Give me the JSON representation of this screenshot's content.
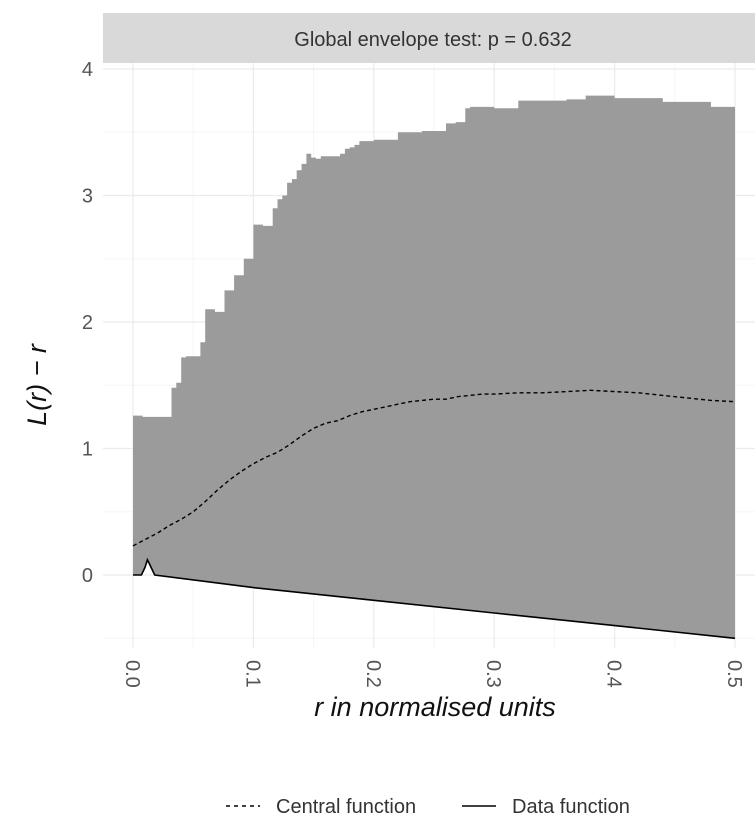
{
  "chart_data": {
    "type": "area",
    "facet_title": "Global envelope test: p = 0.632",
    "xlabel": "r in normalised units",
    "ylabel": "L(r) − r",
    "xlim": [
      0.0,
      0.5
    ],
    "ylim": [
      -0.55,
      4.05
    ],
    "x_ticks": [
      0.0,
      0.1,
      0.2,
      0.3,
      0.4,
      0.5
    ],
    "x_tick_labels": [
      "0.0",
      "0.1",
      "0.2",
      "0.3",
      "0.4",
      "0.5"
    ],
    "y_ticks": [
      0,
      1,
      2,
      3,
      4
    ],
    "y_tick_labels": [
      "0",
      "1",
      "2",
      "3",
      "4"
    ],
    "grid": true,
    "legend_position": "bottom",
    "envelope": {
      "x": [
        0.0,
        0.004,
        0.008,
        0.012,
        0.016,
        0.02,
        0.024,
        0.028,
        0.032,
        0.036,
        0.04,
        0.044,
        0.048,
        0.052,
        0.056,
        0.06,
        0.064,
        0.068,
        0.072,
        0.076,
        0.08,
        0.084,
        0.088,
        0.092,
        0.096,
        0.1,
        0.104,
        0.108,
        0.112,
        0.116,
        0.12,
        0.124,
        0.128,
        0.132,
        0.136,
        0.14,
        0.144,
        0.148,
        0.152,
        0.156,
        0.16,
        0.164,
        0.168,
        0.172,
        0.176,
        0.18,
        0.184,
        0.188,
        0.2,
        0.22,
        0.228,
        0.24,
        0.26,
        0.268,
        0.276,
        0.28,
        0.3,
        0.32,
        0.36,
        0.376,
        0.4,
        0.44,
        0.48,
        0.5
      ],
      "upper": [
        1.26,
        1.26,
        1.25,
        1.25,
        1.25,
        1.25,
        1.25,
        1.25,
        1.48,
        1.52,
        1.72,
        1.73,
        1.73,
        1.73,
        1.84,
        2.1,
        2.1,
        2.08,
        2.08,
        2.25,
        2.25,
        2.37,
        2.37,
        2.5,
        2.5,
        2.77,
        2.77,
        2.76,
        2.76,
        2.9,
        2.97,
        3.0,
        3.1,
        3.13,
        3.2,
        3.25,
        3.33,
        3.3,
        3.29,
        3.31,
        3.31,
        3.31,
        3.31,
        3.33,
        3.37,
        3.38,
        3.4,
        3.43,
        3.44,
        3.5,
        3.5,
        3.51,
        3.57,
        3.58,
        3.69,
        3.7,
        3.69,
        3.75,
        3.76,
        3.79,
        3.77,
        3.74,
        3.7,
        3.67
      ],
      "lower_line": "data_function",
      "color": "#9b9b9b"
    },
    "series": [
      {
        "name": "Central function",
        "style": "dashed",
        "x": [
          0.0,
          0.01,
          0.02,
          0.03,
          0.04,
          0.05,
          0.06,
          0.07,
          0.08,
          0.09,
          0.1,
          0.11,
          0.12,
          0.13,
          0.14,
          0.15,
          0.16,
          0.17,
          0.18,
          0.19,
          0.2,
          0.21,
          0.22,
          0.23,
          0.24,
          0.25,
          0.26,
          0.27,
          0.28,
          0.29,
          0.3,
          0.32,
          0.34,
          0.36,
          0.38,
          0.4,
          0.42,
          0.44,
          0.46,
          0.48,
          0.5
        ],
        "values": [
          0.23,
          0.28,
          0.33,
          0.39,
          0.44,
          0.5,
          0.58,
          0.67,
          0.75,
          0.82,
          0.88,
          0.93,
          0.97,
          1.03,
          1.1,
          1.16,
          1.2,
          1.22,
          1.26,
          1.29,
          1.31,
          1.33,
          1.35,
          1.37,
          1.38,
          1.39,
          1.39,
          1.41,
          1.42,
          1.43,
          1.43,
          1.44,
          1.44,
          1.45,
          1.46,
          1.45,
          1.44,
          1.42,
          1.4,
          1.38,
          1.37
        ]
      },
      {
        "name": "Data function",
        "style": "solid",
        "x": [
          0.0,
          0.007,
          0.01,
          0.012,
          0.015,
          0.018,
          0.1,
          0.2,
          0.3,
          0.4,
          0.5
        ],
        "values": [
          0.0,
          0.0,
          0.06,
          0.12,
          0.06,
          0.0,
          -0.1,
          -0.2,
          -0.3,
          -0.4,
          -0.5
        ]
      }
    ],
    "colors": {
      "envelope": "#9b9b9b",
      "strip": "#d9d9d9",
      "grid_major": "#ebebeb",
      "grid_minor": "#f5f5f5",
      "line": "#000000"
    }
  },
  "legend": {
    "central_label": "Central function",
    "data_label": "Data function"
  }
}
